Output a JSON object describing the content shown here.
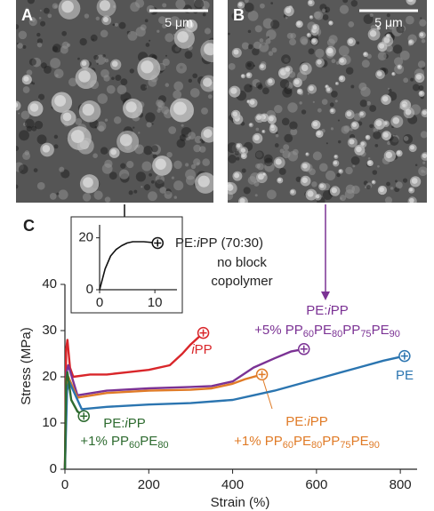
{
  "panels": {
    "a": {
      "label": "A",
      "scale_bar": "5 μm"
    },
    "b": {
      "label": "B",
      "scale_bar": "5 μm"
    }
  },
  "chart_data": {
    "type": "line",
    "panel_label": "C",
    "x_label": "Strain (%)",
    "y_label": "Stress (MPa)",
    "xlim": [
      0,
      840
    ],
    "ylim": [
      0,
      40
    ],
    "xticks": [
      0,
      200,
      400,
      600,
      800
    ],
    "yticks": [
      0,
      10,
      20,
      30,
      40
    ],
    "series": [
      {
        "label": [
          "iPP"
        ],
        "color": "#d9262a",
        "x": [
          0,
          3,
          6,
          12,
          20,
          60,
          100,
          150,
          200,
          250,
          280,
          300,
          330
        ],
        "values": [
          0,
          26,
          28,
          22,
          20,
          20.5,
          20.5,
          21,
          21.5,
          22.5,
          25,
          27,
          29.5
        ]
      },
      {
        "label": [
          "PE:iPP",
          "+5% PP60PE80PP75PE90"
        ],
        "color": "#7b3294",
        "x": [
          0,
          4,
          8,
          30,
          100,
          200,
          300,
          350,
          400,
          450,
          500,
          540,
          570
        ],
        "values": [
          0,
          21,
          22.5,
          16,
          17,
          17.5,
          17.8,
          18,
          19,
          22,
          24,
          25.5,
          26
        ]
      },
      {
        "label": [
          "PE:iPP",
          "+1% PP60PE80PP75PE90"
        ],
        "color": "#e07b27",
        "x": [
          0,
          4,
          8,
          30,
          100,
          200,
          300,
          350,
          400,
          430,
          470
        ],
        "values": [
          0,
          19,
          20,
          15.5,
          16.5,
          17,
          17.2,
          17.5,
          18.5,
          19.5,
          20.5
        ]
      },
      {
        "label": [
          "PE"
        ],
        "color": "#2b75b0",
        "x": [
          0,
          5,
          10,
          40,
          100,
          200,
          300,
          400,
          450,
          500,
          600,
          700,
          760,
          810
        ],
        "values": [
          0,
          17,
          19,
          13,
          13.5,
          14,
          14.3,
          15,
          16,
          17,
          19.5,
          22,
          23.5,
          24.5
        ]
      },
      {
        "label": [
          "PE:iPP",
          "+1% PP60PE80"
        ],
        "color": "#2e6b30",
        "x": [
          0,
          3,
          6,
          15,
          30,
          45
        ],
        "values": [
          0,
          19,
          21,
          15,
          12.5,
          11.5
        ]
      }
    ],
    "inset": {
      "xlim": [
        0,
        14
      ],
      "ylim": [
        0,
        25
      ],
      "xticks": [
        0,
        10
      ],
      "yticks": [
        0,
        20
      ],
      "series": [
        {
          "label": [
            "PE:iPP (70:30)",
            "no block",
            "copolymer"
          ],
          "color": "#111111",
          "x": [
            0,
            1,
            2,
            3,
            4,
            5,
            6,
            8,
            10.5
          ],
          "values": [
            0,
            8,
            13,
            15.5,
            17,
            18,
            18.5,
            18.5,
            18
          ]
        }
      ]
    }
  }
}
